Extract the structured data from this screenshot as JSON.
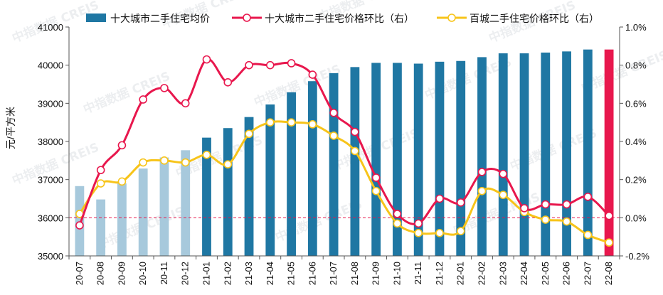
{
  "chart_data": {
    "type": "bar+line",
    "categories": [
      "20-07",
      "20-08",
      "20-09",
      "20-10",
      "20-11",
      "20-12",
      "21-01",
      "21-02",
      "21-03",
      "21-04",
      "21-05",
      "21-06",
      "21-07",
      "21-08",
      "21-09",
      "21-10",
      "21-11",
      "21-12",
      "22-01",
      "22-02",
      "22-03",
      "22-04",
      "22-05",
      "22-06",
      "22-07",
      "22-08"
    ],
    "series": [
      {
        "name": "十大城市二手住宅均价",
        "kind": "bar",
        "axis": "left",
        "values": [
          36830,
          36480,
          36900,
          37290,
          37580,
          37770,
          38100,
          38350,
          38640,
          38970,
          39290,
          39580,
          39790,
          39950,
          40060,
          40060,
          40040,
          40090,
          40110,
          40210,
          40310,
          40310,
          40330,
          40360,
          40410,
          40410
        ]
      },
      {
        "name": "十大城市二手住宅价格环比（右）",
        "kind": "line",
        "axis": "right",
        "values": [
          -0.04,
          0.25,
          0.38,
          0.62,
          0.68,
          0.6,
          0.83,
          0.71,
          0.8,
          0.8,
          0.81,
          0.75,
          0.55,
          0.45,
          0.21,
          0.02,
          -0.03,
          0.1,
          0.08,
          0.24,
          0.23,
          0.05,
          0.07,
          0.07,
          0.11,
          0.01
        ]
      },
      {
        "name": "百城二手住宅价格环比（右）",
        "kind": "line",
        "axis": "right",
        "values": [
          0.02,
          0.18,
          0.19,
          0.29,
          0.3,
          0.29,
          0.33,
          0.28,
          0.44,
          0.5,
          0.5,
          0.49,
          0.43,
          0.35,
          0.14,
          -0.03,
          -0.08,
          -0.08,
          -0.07,
          0.14,
          0.12,
          0.03,
          -0.01,
          -0.02,
          -0.09,
          -0.13
        ]
      }
    ],
    "ylabel": "元/平方米",
    "y_left": {
      "min": 35000,
      "max": 41000,
      "ticks": [
        "35000",
        "36000",
        "37000",
        "38000",
        "39000",
        "40000",
        "41000"
      ]
    },
    "y_right": {
      "min": -0.2,
      "max": 1.0,
      "ticks": [
        "-0.2%",
        "0.0%",
        "0.2%",
        "0.4%",
        "0.6%",
        "0.8%",
        "1.0%"
      ]
    },
    "zero_line": "dashed",
    "watermark": "中指数据 CREIS",
    "legend_position": "top"
  },
  "colors": {
    "bar_dark": "#1f77a3",
    "bar_light": "#a7c9dc",
    "bar_last": "#e8174d",
    "line_ten": "#e8174d",
    "line_hundred": "#f7c41a",
    "zero_line": "#e8174d"
  }
}
